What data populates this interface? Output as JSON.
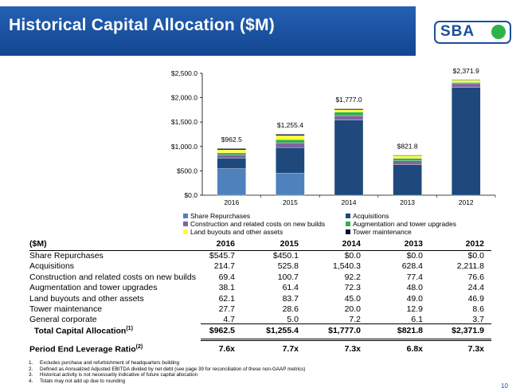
{
  "header": {
    "title": "Historical Capital Allocation ($M)",
    "logo_text": "SBA"
  },
  "colors": {
    "header": "#1a4f9c",
    "Share Repurchases": "#4f81bd",
    "Acquisitions": "#1f497d",
    "Construction and related costs on new builds": "#8064a2",
    "Augmentation and tower upgrades": "#2db34a",
    "Land buyouts and other assets": "#ffff33",
    "Tower maintenance": "#0d0d3a",
    "General corporate": "#000000"
  },
  "chart_data": {
    "type": "bar",
    "stacked": true,
    "categories": [
      "2016",
      "2015",
      "2014",
      "2013",
      "2012"
    ],
    "ylim": [
      0,
      2500
    ],
    "yticks": [
      "$0.0",
      "$500.0",
      "$1,000.0",
      "$1,500.0",
      "$2,000.0",
      "$2,500.0"
    ],
    "ytick_values": [
      0,
      500,
      1000,
      1500,
      2000,
      2500
    ],
    "grid": false,
    "legend_position": "bottom",
    "totals": [
      962.5,
      1255.4,
      1777.0,
      821.8,
      2371.9
    ],
    "total_labels": [
      "$962.5",
      "$1,255.4",
      "$1,777.0",
      "$821.8",
      "$2,371.9"
    ],
    "series": [
      {
        "name": "Share Repurchases",
        "values": [
          545.7,
          450.1,
          0.0,
          0.0,
          0.0
        ]
      },
      {
        "name": "Acquisitions",
        "values": [
          214.7,
          525.8,
          1540.3,
          628.4,
          2211.8
        ]
      },
      {
        "name": "Construction and related costs on new builds",
        "values": [
          69.4,
          100.7,
          92.2,
          77.4,
          76.6
        ]
      },
      {
        "name": "Augmentation and tower upgrades",
        "values": [
          38.1,
          61.4,
          72.3,
          48.0,
          24.4
        ]
      },
      {
        "name": "Land buyouts and other assets",
        "values": [
          62.1,
          83.7,
          45.0,
          49.0,
          46.9
        ]
      },
      {
        "name": "Tower maintenance",
        "values": [
          27.7,
          28.6,
          20.0,
          12.9,
          8.6
        ]
      },
      {
        "name": "General corporate",
        "values": [
          4.7,
          5.0,
          7.2,
          6.1,
          3.7
        ]
      }
    ]
  },
  "legend": [
    {
      "label": "Share Repurchases",
      "color": "#4f81bd"
    },
    {
      "label": "Acquisitions",
      "color": "#1f497d"
    },
    {
      "label": "Construction and related costs on new builds",
      "color": "#8064a2"
    },
    {
      "label": "Augmentation and tower upgrades",
      "color": "#2db34a"
    },
    {
      "label": "Land buyouts and other assets",
      "color": "#ffff33"
    },
    {
      "label": "Tower maintenance",
      "color": "#0d0d3a"
    }
  ],
  "table": {
    "unit_header": "($M)",
    "years": [
      "2016",
      "2015",
      "2014",
      "2013",
      "2012"
    ],
    "rows": [
      {
        "label": "Share Repurchases",
        "values": [
          "$545.7",
          "$450.1",
          "$0.0",
          "$0.0",
          "$0.0"
        ]
      },
      {
        "label": "Acquisitions",
        "values": [
          "214.7",
          "525.8",
          "1,540.3",
          "628.4",
          "2,211.8"
        ]
      },
      {
        "label": "Construction and related costs on new builds",
        "values": [
          "69.4",
          "100.7",
          "92.2",
          "77.4",
          "76.6"
        ]
      },
      {
        "label": "Augmentation and tower upgrades",
        "values": [
          "38.1",
          "61.4",
          "72.3",
          "48.0",
          "24.4"
        ]
      },
      {
        "label": "Land buyouts and other assets",
        "values": [
          "62.1",
          "83.7",
          "45.0",
          "49.0",
          "46.9"
        ]
      },
      {
        "label": "Tower maintenance",
        "values": [
          "27.7",
          "28.6",
          "20.0",
          "12.9",
          "8.6"
        ]
      },
      {
        "label": "General corporate",
        "values": [
          "4.7",
          "5.0",
          "7.2",
          "6.1",
          "3.7"
        ]
      }
    ],
    "total": {
      "label": "Total Capital Allocation",
      "sup": "(1)",
      "values": [
        "$962.5",
        "$1,255.4",
        "$1,777.0",
        "$821.8",
        "$2,371.9"
      ]
    },
    "leverage": {
      "label": "Period End Leverage Ratio",
      "sup": "(2)",
      "values": [
        "7.6x",
        "7.7x",
        "7.3x",
        "6.8x",
        "7.3x"
      ]
    }
  },
  "notes": [
    {
      "num": "1.",
      "text": "Excludes purchase and refurbishment of headquarters building"
    },
    {
      "num": "2.",
      "text": "Defined as Annualized Adjusted EBITDA divided by net debt (see page 39 for reconciliation of these non-GAAP metrics)"
    },
    {
      "num": "3.",
      "text": "Historical activity is not necessarily indicative of future capital allocation"
    },
    {
      "num": "4.",
      "text": "Totals may not add up due to rounding"
    }
  ],
  "page_number": "10"
}
